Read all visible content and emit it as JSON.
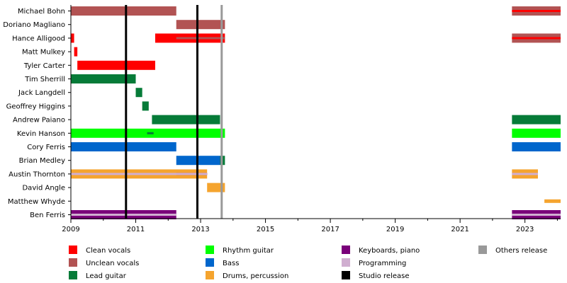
{
  "chart_data": {
    "type": "timeline",
    "title": "",
    "xlabel": "",
    "ylabel": "",
    "xlim": [
      2009.0,
      2024.1
    ],
    "x_ticks": [
      "2009",
      "2011",
      "2013",
      "2015",
      "2017",
      "2019",
      "2021",
      "2023"
    ],
    "grid": false,
    "legend_position": "bottom",
    "members": [
      "Michael Bohn",
      "Doriano Magliano",
      "Hance Alligood",
      "Matt Mulkey",
      "Tyler Carter",
      "Tim Sherrill",
      "Jack Langdell",
      "Geoffrey Higgins",
      "Andrew Paiano",
      "Kevin Hanson",
      "Cory Ferris",
      "Brian Medley",
      "Austin Thornton",
      "David Angle",
      "Matthew Whyde",
      "Ben Ferris"
    ],
    "roles": [
      {
        "key": "clean",
        "label": "Clean vocals",
        "color": "#ff0000"
      },
      {
        "key": "unclean",
        "label": "Unclean vocals",
        "color": "#b25353"
      },
      {
        "key": "lead",
        "label": "Lead guitar",
        "color": "#067b38"
      },
      {
        "key": "rhythm",
        "label": "Rhythm guitar",
        "color": "#00ff00"
      },
      {
        "key": "bass",
        "label": "Bass",
        "color": "#0066cc"
      },
      {
        "key": "drums",
        "label": "Drums, percussion",
        "color": "#f5a42e"
      },
      {
        "key": "keys",
        "label": "Keyboards, piano",
        "color": "#7a007a"
      },
      {
        "key": "prog",
        "label": "Programming",
        "color": "#d0aed0"
      },
      {
        "key": "studio",
        "label": "Studio release",
        "color": "#000000"
      },
      {
        "key": "others",
        "label": "Others release",
        "color": "#999999"
      }
    ],
    "bars": [
      {
        "member": 0,
        "role": "unclean",
        "start": 2009.0,
        "end": 2012.25
      },
      {
        "member": 0,
        "role": "unclean",
        "start": 2022.6,
        "end": 2024.1
      },
      {
        "member": 0,
        "role": "clean",
        "start": 2022.6,
        "end": 2024.1,
        "thin": true
      },
      {
        "member": 1,
        "role": "unclean",
        "start": 2012.25,
        "end": 2013.75
      },
      {
        "member": 2,
        "role": "clean",
        "start": 2009.0,
        "end": 2009.1
      },
      {
        "member": 2,
        "role": "clean",
        "start": 2011.6,
        "end": 2013.75
      },
      {
        "member": 2,
        "role": "unclean",
        "start": 2012.25,
        "end": 2013.75,
        "thin": true
      },
      {
        "member": 2,
        "role": "unclean",
        "start": 2022.6,
        "end": 2024.1
      },
      {
        "member": 2,
        "role": "clean",
        "start": 2022.6,
        "end": 2024.1,
        "thin": true
      },
      {
        "member": 3,
        "role": "clean",
        "start": 2009.1,
        "end": 2009.2
      },
      {
        "member": 4,
        "role": "clean",
        "start": 2009.2,
        "end": 2011.6
      },
      {
        "member": 5,
        "role": "lead",
        "start": 2009.0,
        "end": 2011.0
      },
      {
        "member": 6,
        "role": "lead",
        "start": 2011.0,
        "end": 2011.2
      },
      {
        "member": 7,
        "role": "lead",
        "start": 2011.2,
        "end": 2011.4
      },
      {
        "member": 8,
        "role": "lead",
        "start": 2011.5,
        "end": 2013.6
      },
      {
        "member": 8,
        "role": "lead",
        "start": 2022.6,
        "end": 2024.1
      },
      {
        "member": 9,
        "role": "rhythm",
        "start": 2009.0,
        "end": 2013.75
      },
      {
        "member": 9,
        "role": "lead",
        "start": 2011.35,
        "end": 2011.55,
        "thin": true
      },
      {
        "member": 9,
        "role": "rhythm",
        "start": 2022.6,
        "end": 2024.1
      },
      {
        "member": 10,
        "role": "bass",
        "start": 2009.0,
        "end": 2012.25
      },
      {
        "member": 10,
        "role": "bass",
        "start": 2022.6,
        "end": 2024.1
      },
      {
        "member": 11,
        "role": "bass",
        "start": 2012.25,
        "end": 2013.6
      },
      {
        "member": 11,
        "role": "lead",
        "start": 2013.6,
        "end": 2013.75
      },
      {
        "member": 12,
        "role": "drums",
        "start": 2009.0,
        "end": 2013.2
      },
      {
        "member": 12,
        "role": "keys",
        "start": 2012.25,
        "end": 2013.2,
        "thin": true
      },
      {
        "member": 12,
        "role": "prog",
        "start": 2009.0,
        "end": 2013.2,
        "thin": true
      },
      {
        "member": 12,
        "role": "drums",
        "start": 2022.6,
        "end": 2023.4
      },
      {
        "member": 12,
        "role": "prog",
        "start": 2022.6,
        "end": 2023.4,
        "thin": true
      },
      {
        "member": 13,
        "role": "drums",
        "start": 2013.2,
        "end": 2013.75
      },
      {
        "member": 14,
        "role": "drums",
        "start": 2023.6,
        "end": 2024.1,
        "narrow": true
      },
      {
        "member": 15,
        "role": "keys",
        "start": 2009.0,
        "end": 2012.25
      },
      {
        "member": 15,
        "role": "prog",
        "start": 2009.0,
        "end": 2012.25,
        "thin": true
      },
      {
        "member": 15,
        "role": "keys",
        "start": 2022.6,
        "end": 2024.1
      },
      {
        "member": 15,
        "role": "prog",
        "start": 2022.6,
        "end": 2024.1,
        "thin": true
      }
    ],
    "releases": [
      {
        "type": "studio",
        "x": 2010.7
      },
      {
        "type": "studio",
        "x": 2012.9
      },
      {
        "type": "others",
        "x": 2013.65
      }
    ]
  }
}
